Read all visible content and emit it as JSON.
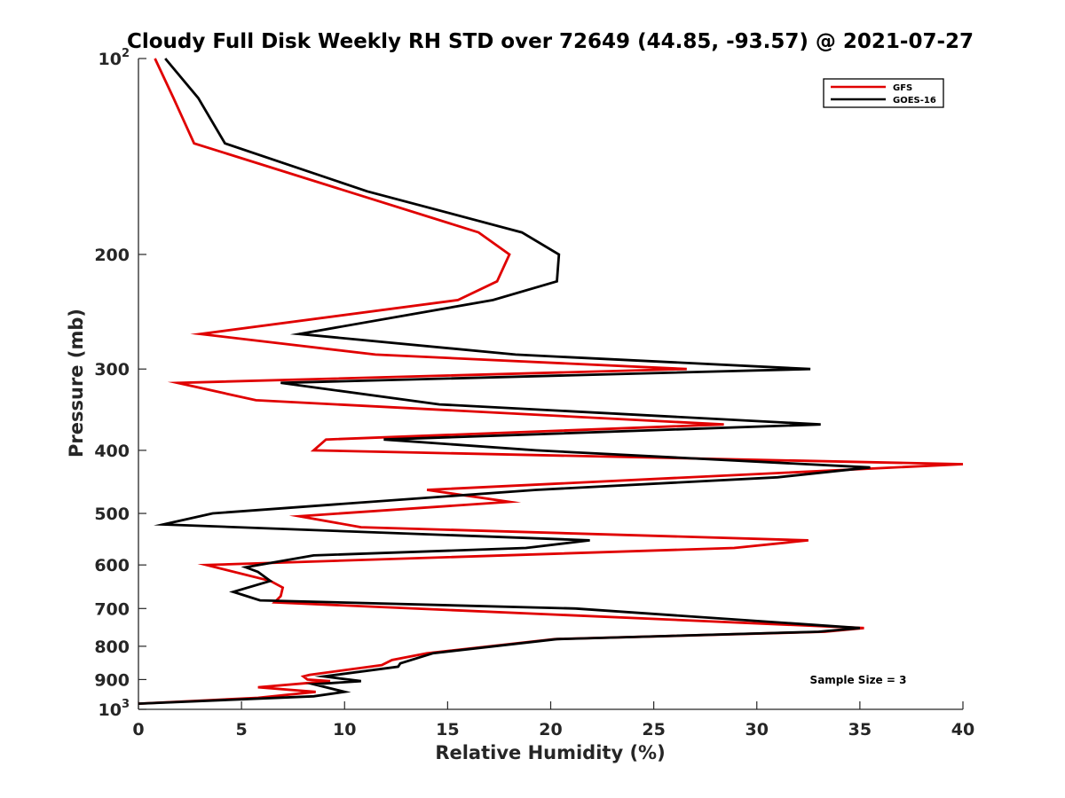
{
  "chart_data": {
    "type": "line",
    "title": "Cloudy Full Disk Weekly RH STD over 72649 (44.85, -93.57) @ 2021-07-27",
    "xlabel": "Relative Humidity (%)",
    "ylabel": "Pressure (mb)",
    "xlim": [
      0,
      40
    ],
    "ylim": [
      100,
      1000
    ],
    "y_scale": "log",
    "y_reversed": true,
    "x_ticks": [
      "0",
      "5",
      "10",
      "15",
      "20",
      "25",
      "30",
      "35",
      "40"
    ],
    "y_ticks": [
      {
        "value": 100,
        "base": "10",
        "exp": "2"
      },
      {
        "value": 200,
        "label": "200"
      },
      {
        "value": 300,
        "label": "300"
      },
      {
        "value": 400,
        "label": "400"
      },
      {
        "value": 500,
        "label": "500"
      },
      {
        "value": 600,
        "label": "600"
      },
      {
        "value": 700,
        "label": "700"
      },
      {
        "value": 800,
        "label": "800"
      },
      {
        "value": 900,
        "label": "900"
      },
      {
        "value": 1000,
        "base": "10",
        "exp": "3"
      }
    ],
    "legend_position": "top-right",
    "grid": false,
    "annotation": "Sample Size = 3",
    "series": [
      {
        "name": "GFS",
        "color": "#e00000",
        "points": [
          [
            0.8,
            100
          ],
          [
            1.7,
            115
          ],
          [
            2.7,
            135
          ],
          [
            16.5,
            185
          ],
          [
            18.0,
            200
          ],
          [
            17.4,
            220
          ],
          [
            15.5,
            235
          ],
          [
            3.0,
            265
          ],
          [
            11.5,
            285
          ],
          [
            26.6,
            300
          ],
          [
            1.9,
            315
          ],
          [
            5.7,
            335
          ],
          [
            28.4,
            365
          ],
          [
            9.1,
            385
          ],
          [
            8.5,
            400
          ],
          [
            40.0,
            420
          ],
          [
            14.0,
            460
          ],
          [
            18.0,
            480
          ],
          [
            7.8,
            505
          ],
          [
            10.8,
            525
          ],
          [
            32.5,
            550
          ],
          [
            28.9,
            565
          ],
          [
            3.3,
            600
          ],
          [
            6.4,
            635
          ],
          [
            7.0,
            650
          ],
          [
            6.9,
            670
          ],
          [
            6.6,
            685
          ],
          [
            35.2,
            750
          ],
          [
            33.3,
            760
          ],
          [
            20.2,
            780
          ],
          [
            14.0,
            820
          ],
          [
            12.3,
            840
          ],
          [
            11.8,
            855
          ],
          [
            8.3,
            885
          ],
          [
            8.0,
            890
          ],
          [
            8.2,
            900
          ],
          [
            9.3,
            905
          ],
          [
            5.8,
            925
          ],
          [
            8.6,
            940
          ],
          [
            5.8,
            960
          ],
          [
            0.0,
            980
          ]
        ]
      },
      {
        "name": "GOES-16",
        "color": "#000000",
        "points": [
          [
            1.3,
            100
          ],
          [
            2.9,
            115
          ],
          [
            4.2,
            135
          ],
          [
            11.1,
            160
          ],
          [
            18.6,
            185
          ],
          [
            20.4,
            200
          ],
          [
            20.3,
            220
          ],
          [
            17.2,
            235
          ],
          [
            7.8,
            265
          ],
          [
            18.3,
            285
          ],
          [
            32.6,
            300
          ],
          [
            6.9,
            315
          ],
          [
            14.6,
            340
          ],
          [
            33.1,
            365
          ],
          [
            11.9,
            385
          ],
          [
            19.3,
            400
          ],
          [
            35.5,
            425
          ],
          [
            31.0,
            440
          ],
          [
            19.3,
            460
          ],
          [
            9.3,
            485
          ],
          [
            3.6,
            500
          ],
          [
            1.2,
            520
          ],
          [
            21.9,
            550
          ],
          [
            18.8,
            565
          ],
          [
            8.5,
            580
          ],
          [
            5.2,
            605
          ],
          [
            5.8,
            615
          ],
          [
            6.4,
            635
          ],
          [
            4.6,
            660
          ],
          [
            5.9,
            680
          ],
          [
            21.2,
            700
          ],
          [
            35.0,
            750
          ],
          [
            33.0,
            760
          ],
          [
            20.3,
            780
          ],
          [
            14.3,
            820
          ],
          [
            12.7,
            850
          ],
          [
            12.6,
            860
          ],
          [
            9.0,
            890
          ],
          [
            10.8,
            905
          ],
          [
            8.5,
            915
          ],
          [
            10.0,
            940
          ],
          [
            8.5,
            955
          ],
          [
            0.0,
            980
          ]
        ]
      }
    ]
  }
}
